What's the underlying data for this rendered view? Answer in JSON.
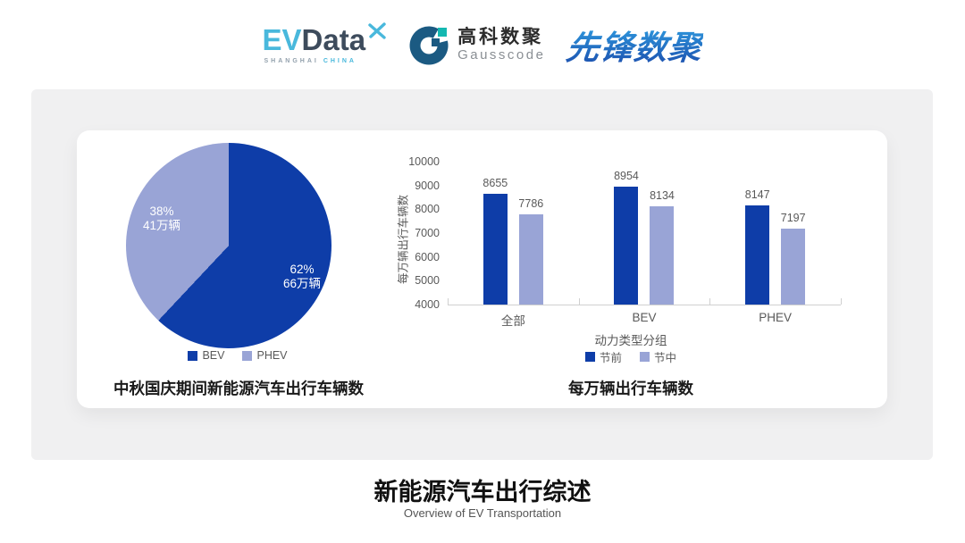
{
  "header": {
    "evdata": {
      "ev": "EV",
      "data": "Data",
      "sub_left": "SHANGHAI",
      "sub_right": "CHINA"
    },
    "gausscode": {
      "cn": "高科数聚",
      "en": "Gausscode"
    },
    "xianfeng": {
      "text": "先锋数聚"
    }
  },
  "footer": {
    "title": "新能源汽车出行综述",
    "subtitle": "Overview of EV Transportation"
  },
  "colors": {
    "dark_blue": "#0e3da8",
    "light_purple": "#99a4d6",
    "axis_text": "#595959",
    "panel_bg": "#f0f0f1",
    "evdata_blue": "#49b8dc",
    "evdata_dark": "#3d4b5c",
    "gauss_dark": "#1b5a82",
    "gauss_teal": "#14b8b1",
    "xianfeng_grad_top": "#2f9fe2",
    "xianfeng_grad_bottom": "#1c4fae"
  },
  "chart_data": [
    {
      "type": "pie",
      "title": "中秋国庆期间新能源汽车出行车辆数",
      "start_angle_deg": 0,
      "direction": "clockwise",
      "legend_position": "bottom",
      "slices": [
        {
          "label": "BEV",
          "pct": 62,
          "pct_label": "62%",
          "amount_label": "66万辆",
          "value_wan": 66,
          "color": "#0e3da8"
        },
        {
          "label": "PHEV",
          "pct": 38,
          "pct_label": "38%",
          "amount_label": "41万辆",
          "value_wan": 41,
          "color": "#99a4d6"
        }
      ]
    },
    {
      "type": "bar",
      "title": "每万辆出行车辆数",
      "xlabel": "动力类型分组",
      "ylabel": "每万辆出行车辆数",
      "categories": [
        "全部",
        "BEV",
        "PHEV"
      ],
      "series": [
        {
          "name": "节前",
          "values": [
            8655,
            8954,
            8147
          ],
          "color": "#0e3da8"
        },
        {
          "name": "节中",
          "values": [
            7786,
            8134,
            7197
          ],
          "color": "#99a4d6"
        }
      ],
      "ylim": [
        4000,
        10000
      ],
      "ytick_step": 1000,
      "grid": false,
      "legend_position": "bottom",
      "data_labels": true
    }
  ]
}
